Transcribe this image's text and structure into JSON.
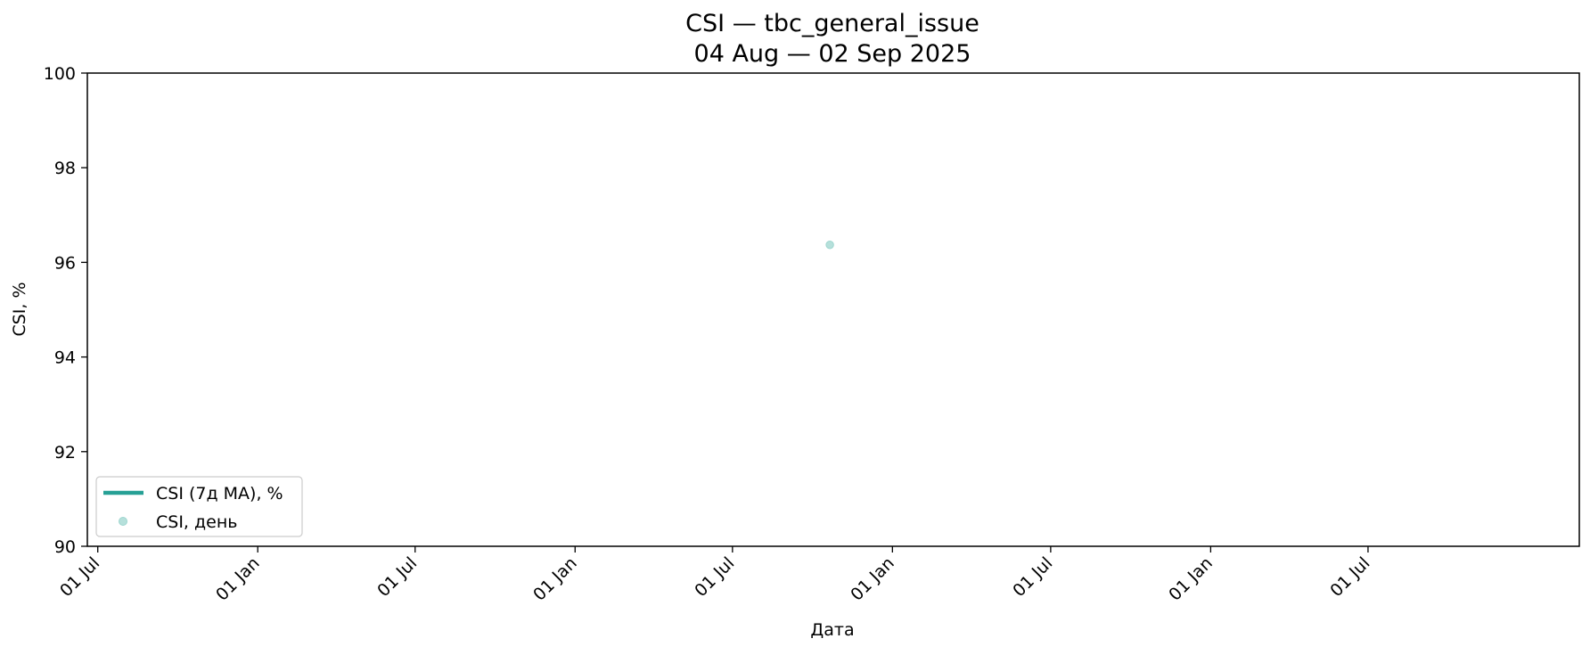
{
  "chart_data": {
    "type": "line",
    "title": "CSI — tbc_general_issue",
    "subtitle": "04 Aug — 02 Sep 2025",
    "xlabel": "Дата",
    "ylabel": "CSI, %",
    "xlim": [
      "2021-06-19",
      "2026-03-01"
    ],
    "ylim": [
      90,
      100
    ],
    "x_ticks": [
      {
        "date": "2021-07-01",
        "label": "01 Jul"
      },
      {
        "date": "2022-01-01",
        "label": "01 Jan"
      },
      {
        "date": "2022-07-01",
        "label": "01 Jul"
      },
      {
        "date": "2023-01-01",
        "label": "01 Jan"
      },
      {
        "date": "2023-07-01",
        "label": "01 Jul"
      },
      {
        "date": "2024-01-01",
        "label": "01 Jan"
      },
      {
        "date": "2024-07-01",
        "label": "01 Jul"
      },
      {
        "date": "2025-01-01",
        "label": "01 Jan"
      },
      {
        "date": "2025-07-01",
        "label": "01 Jul"
      }
    ],
    "y_ticks": [
      90,
      92,
      94,
      96,
      98,
      100
    ],
    "grid": false,
    "legend": "lower left",
    "series": [
      {
        "name": "CSI (7д MA), %",
        "type": "line",
        "color": "#26a095",
        "points": []
      },
      {
        "name": "CSI, день",
        "type": "scatter",
        "color": "#9ed6cf",
        "points": [
          {
            "x": "2023-10-21",
            "y": 96.37
          }
        ]
      }
    ]
  }
}
